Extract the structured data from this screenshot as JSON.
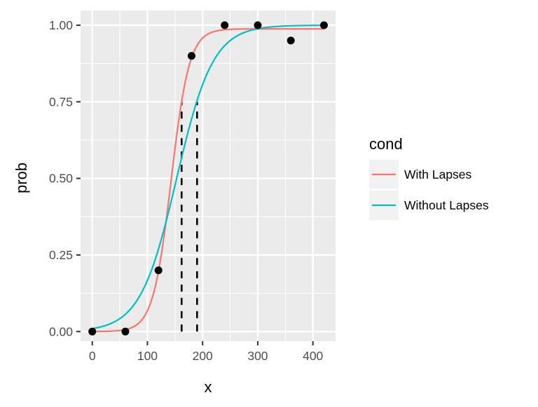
{
  "chart_data": {
    "type": "line",
    "title": "",
    "xlabel": "x",
    "ylabel": "prob",
    "xlim": [
      -20,
      442
    ],
    "ylim": [
      -0.03,
      1.05
    ],
    "x_ticks": [
      0,
      100,
      200,
      300,
      400
    ],
    "x_tick_labels": [
      "0",
      "100",
      "200",
      "300",
      "400"
    ],
    "y_ticks": [
      0,
      0.25,
      0.5,
      0.75,
      1
    ],
    "y_tick_labels": [
      "0.00",
      "0.25",
      "0.50",
      "0.75",
      "1.00"
    ],
    "grid": true,
    "points": {
      "x": [
        0,
        60,
        120,
        180,
        240,
        300,
        360,
        420
      ],
      "y": [
        0,
        0,
        0.2,
        0.9,
        1,
        1,
        0.95,
        1
      ]
    },
    "series": [
      {
        "name": "With Lapses",
        "color": "#F8766D",
        "model": "logistic",
        "midpoint": 143,
        "scale": 16.5,
        "upper": 0.988,
        "x_range": [
          0,
          420
        ]
      },
      {
        "name": "Without Lapses",
        "color": "#00BFC4",
        "model": "logistic",
        "midpoint": 153,
        "scale": 33,
        "upper": 1.0,
        "x_range": [
          0,
          420
        ]
      }
    ],
    "vlines": [
      {
        "x": 162,
        "y_from": 0,
        "y_to": 0.75,
        "style": "dashed"
      },
      {
        "x": 190,
        "y_from": 0,
        "y_to": 0.75,
        "style": "dashed"
      }
    ],
    "legend": {
      "title": "cond",
      "placement": "right",
      "entries": [
        "With Lapses",
        "Without Lapses"
      ]
    }
  }
}
